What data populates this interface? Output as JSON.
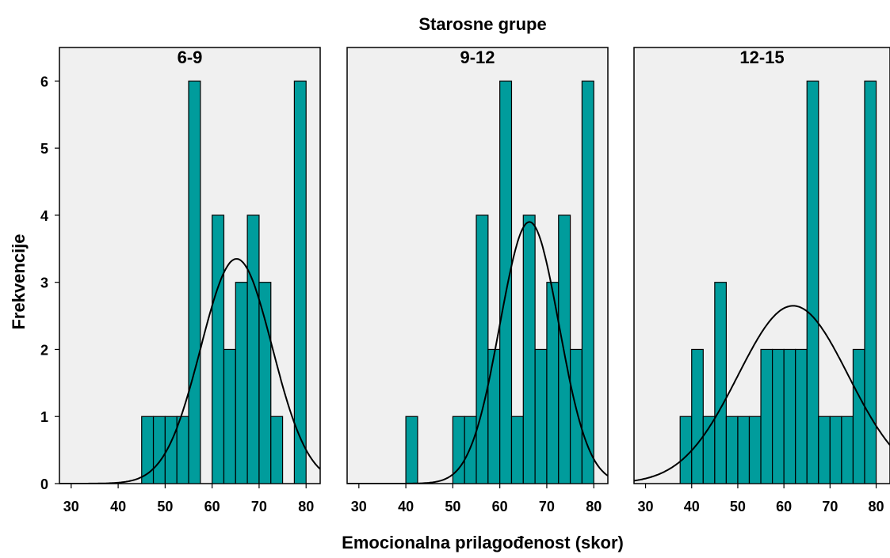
{
  "chart_data": {
    "type": "bar",
    "title": "Starosne grupe",
    "xlabel": "Emocionalna prilagođenost (skor)",
    "ylabel": "Frekvencije",
    "xlim": [
      27.5,
      83
    ],
    "ylim": [
      0,
      6.5
    ],
    "x_ticks": [
      30,
      40,
      50,
      60,
      70,
      80
    ],
    "y_ticks": [
      0,
      1,
      2,
      3,
      4,
      5,
      6
    ],
    "bin_width": 2.5,
    "bar_color": "#009c9c",
    "panel_background": "#f0f0f0",
    "grid": false,
    "series": [
      {
        "name": "6-9",
        "bins": [
          {
            "x0": 45,
            "count": 1
          },
          {
            "x0": 47.5,
            "count": 1
          },
          {
            "x0": 50,
            "count": 1
          },
          {
            "x0": 52.5,
            "count": 1
          },
          {
            "x0": 55,
            "count": 6
          },
          {
            "x0": 60,
            "count": 4
          },
          {
            "x0": 62.5,
            "count": 2
          },
          {
            "x0": 65,
            "count": 3
          },
          {
            "x0": 67.5,
            "count": 4
          },
          {
            "x0": 70,
            "count": 3
          },
          {
            "x0": 72.5,
            "count": 1
          },
          {
            "x0": 77.5,
            "count": 6
          }
        ],
        "normal_curve": {
          "mean": 65.2,
          "sd": 7.6,
          "peak": 3.35
        }
      },
      {
        "name": "9-12",
        "bins": [
          {
            "x0": 40,
            "count": 1
          },
          {
            "x0": 50,
            "count": 1
          },
          {
            "x0": 52.5,
            "count": 1
          },
          {
            "x0": 55,
            "count": 4
          },
          {
            "x0": 57.5,
            "count": 2
          },
          {
            "x0": 60,
            "count": 6
          },
          {
            "x0": 62.5,
            "count": 1
          },
          {
            "x0": 65,
            "count": 4
          },
          {
            "x0": 67.5,
            "count": 2
          },
          {
            "x0": 70,
            "count": 3
          },
          {
            "x0": 72.5,
            "count": 4
          },
          {
            "x0": 75,
            "count": 2
          },
          {
            "x0": 77.5,
            "count": 6
          }
        ],
        "normal_curve": {
          "mean": 66.3,
          "sd": 6.3,
          "peak": 3.9
        }
      },
      {
        "name": "12-15",
        "bins": [
          {
            "x0": 37.5,
            "count": 1
          },
          {
            "x0": 40,
            "count": 2
          },
          {
            "x0": 42.5,
            "count": 1
          },
          {
            "x0": 45,
            "count": 3
          },
          {
            "x0": 47.5,
            "count": 1
          },
          {
            "x0": 50,
            "count": 1
          },
          {
            "x0": 52.5,
            "count": 1
          },
          {
            "x0": 55,
            "count": 2
          },
          {
            "x0": 57.5,
            "count": 2
          },
          {
            "x0": 60,
            "count": 2
          },
          {
            "x0": 62.5,
            "count": 2
          },
          {
            "x0": 65,
            "count": 6
          },
          {
            "x0": 67.5,
            "count": 1
          },
          {
            "x0": 70,
            "count": 1
          },
          {
            "x0": 72.5,
            "count": 1
          },
          {
            "x0": 75,
            "count": 2
          },
          {
            "x0": 77.5,
            "count": 6
          }
        ],
        "normal_curve": {
          "mean": 62.0,
          "sd": 12.0,
          "peak": 2.65
        }
      }
    ]
  }
}
